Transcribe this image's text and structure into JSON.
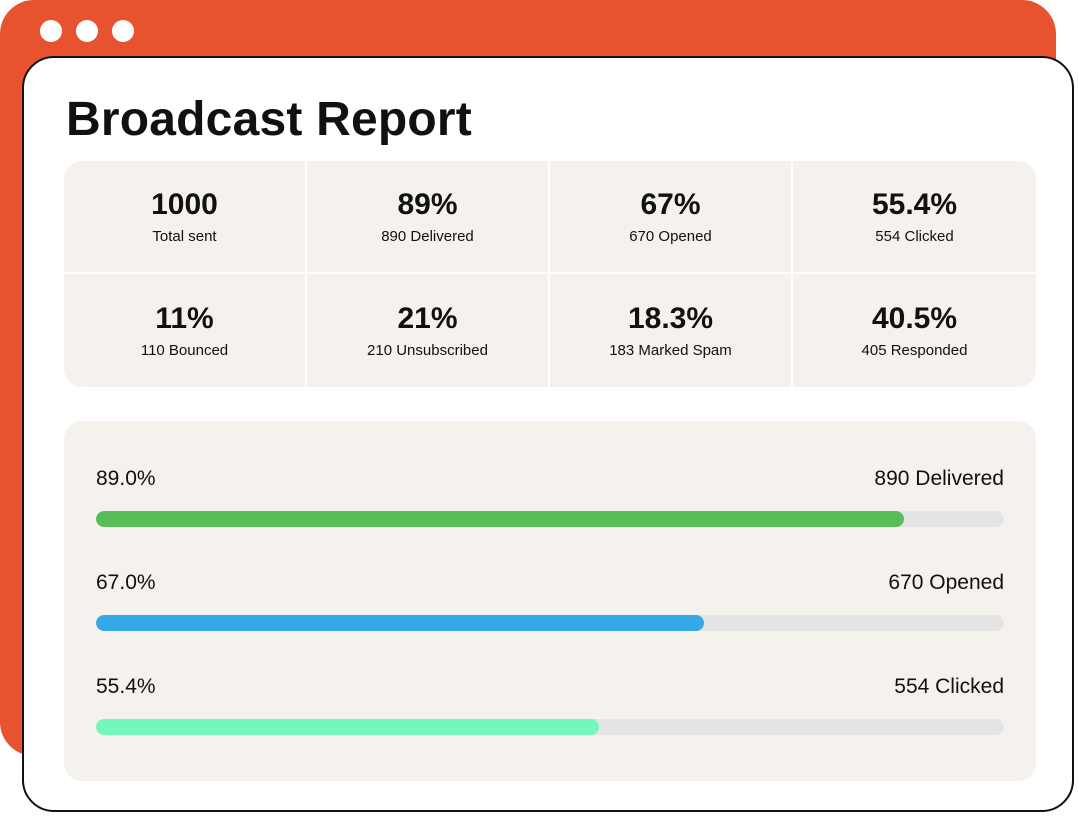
{
  "window": {
    "accent_color": "#e8532f",
    "title": "Broadcast Report"
  },
  "stats": [
    {
      "value": "1000",
      "label": "Total sent"
    },
    {
      "value": "89%",
      "label": "890 Delivered"
    },
    {
      "value": "67%",
      "label": "670 Opened"
    },
    {
      "value": "55.4%",
      "label": "554 Clicked"
    },
    {
      "value": "11%",
      "label": "110 Bounced"
    },
    {
      "value": "21%",
      "label": "210 Unsubscribed"
    },
    {
      "value": "18.3%",
      "label": "183 Marked Spam"
    },
    {
      "value": "40.5%",
      "label": "405 Responded"
    }
  ],
  "progress": [
    {
      "percent_label": "89.0%",
      "count_label": "890 Delivered",
      "fraction": 0.89,
      "color": "#57bd57"
    },
    {
      "percent_label": "67.0%",
      "count_label": "670 Opened",
      "fraction": 0.67,
      "color": "#35a9e8"
    },
    {
      "percent_label": "55.4%",
      "count_label": "554 Clicked",
      "fraction": 0.554,
      "color": "#74f7bd"
    }
  ]
}
